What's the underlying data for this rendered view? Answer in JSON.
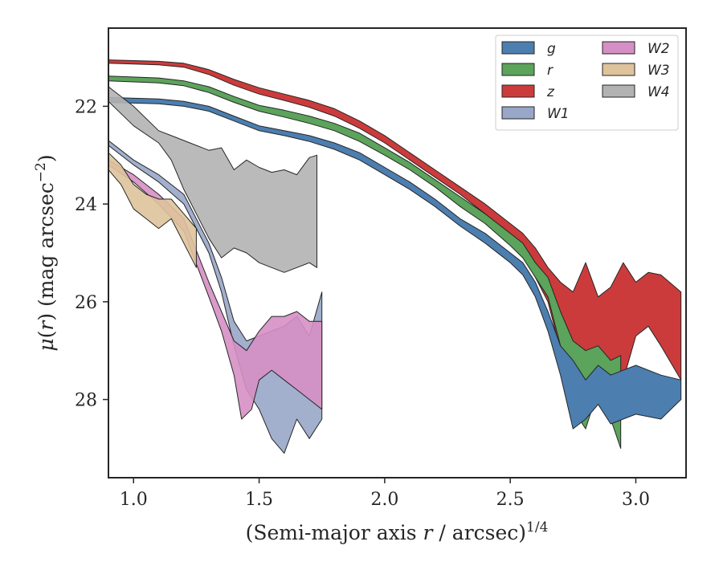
{
  "chart_data": {
    "type": "area",
    "xlabel": "(Semi-major axis r / arcsec)^1/4",
    "ylabel": "μ(r) (mag arcsec−2)",
    "xlim": [
      0.9,
      3.2
    ],
    "ylim": [
      29.6,
      20.4
    ],
    "y_inverted": true,
    "xticks": [
      1.0,
      1.5,
      2.0,
      2.5,
      3.0
    ],
    "xtick_labels": [
      "1.0",
      "1.5",
      "2.0",
      "2.5",
      "3.0"
    ],
    "yticks": [
      22,
      24,
      26,
      28
    ],
    "ytick_labels": [
      "22",
      "24",
      "26",
      "28"
    ],
    "grid": false,
    "legend_position": "top-right",
    "legend_columns": 2,
    "series": [
      {
        "name": "g",
        "color": "#4c7eb0",
        "upper": [
          [
            0.9,
            21.82
          ],
          [
            1.1,
            21.85
          ],
          [
            1.2,
            21.9
          ],
          [
            1.3,
            22.0
          ],
          [
            1.4,
            22.2
          ],
          [
            1.5,
            22.4
          ],
          [
            1.6,
            22.5
          ],
          [
            1.7,
            22.6
          ],
          [
            1.8,
            22.75
          ],
          [
            1.9,
            22.95
          ],
          [
            2.0,
            23.25
          ],
          [
            2.1,
            23.55
          ],
          [
            2.2,
            23.9
          ],
          [
            2.3,
            24.3
          ],
          [
            2.4,
            24.6
          ],
          [
            2.5,
            25.0
          ],
          [
            2.55,
            25.2
          ],
          [
            2.6,
            25.6
          ],
          [
            2.65,
            26.2
          ],
          [
            2.7,
            26.9
          ],
          [
            2.75,
            27.2
          ],
          [
            2.8,
            27.6
          ],
          [
            2.85,
            27.3
          ],
          [
            2.9,
            27.5
          ],
          [
            3.0,
            27.3
          ],
          [
            3.1,
            27.5
          ],
          [
            3.18,
            27.6
          ]
        ],
        "lower": [
          [
            0.9,
            21.92
          ],
          [
            1.1,
            21.95
          ],
          [
            1.2,
            22.0
          ],
          [
            1.3,
            22.1
          ],
          [
            1.4,
            22.3
          ],
          [
            1.5,
            22.5
          ],
          [
            1.6,
            22.6
          ],
          [
            1.7,
            22.72
          ],
          [
            1.8,
            22.88
          ],
          [
            1.9,
            23.1
          ],
          [
            2.0,
            23.4
          ],
          [
            2.1,
            23.7
          ],
          [
            2.2,
            24.05
          ],
          [
            2.3,
            24.45
          ],
          [
            2.4,
            24.8
          ],
          [
            2.5,
            25.2
          ],
          [
            2.55,
            25.45
          ],
          [
            2.6,
            25.9
          ],
          [
            2.65,
            26.6
          ],
          [
            2.7,
            27.5
          ],
          [
            2.75,
            28.6
          ],
          [
            2.8,
            28.4
          ],
          [
            2.85,
            28.1
          ],
          [
            2.9,
            28.5
          ],
          [
            3.0,
            28.3
          ],
          [
            3.1,
            28.4
          ],
          [
            3.18,
            28.0
          ]
        ]
      },
      {
        "name": "r",
        "color": "#5ca35c",
        "upper": [
          [
            0.9,
            21.38
          ],
          [
            1.1,
            21.42
          ],
          [
            1.2,
            21.48
          ],
          [
            1.3,
            21.6
          ],
          [
            1.4,
            21.8
          ],
          [
            1.5,
            21.98
          ],
          [
            1.6,
            22.08
          ],
          [
            1.7,
            22.2
          ],
          [
            1.8,
            22.35
          ],
          [
            1.9,
            22.55
          ],
          [
            2.0,
            22.85
          ],
          [
            2.1,
            23.15
          ],
          [
            2.2,
            23.5
          ],
          [
            2.3,
            23.85
          ],
          [
            2.4,
            24.2
          ],
          [
            2.5,
            24.6
          ],
          [
            2.55,
            24.8
          ],
          [
            2.6,
            25.2
          ],
          [
            2.65,
            25.5
          ],
          [
            2.7,
            26.2
          ],
          [
            2.75,
            26.8
          ],
          [
            2.8,
            27.0
          ],
          [
            2.85,
            26.9
          ],
          [
            2.9,
            27.2
          ],
          [
            2.94,
            27.1
          ]
        ],
        "lower": [
          [
            0.9,
            21.48
          ],
          [
            1.1,
            21.52
          ],
          [
            1.2,
            21.58
          ],
          [
            1.3,
            21.72
          ],
          [
            1.4,
            21.92
          ],
          [
            1.5,
            22.1
          ],
          [
            1.6,
            22.22
          ],
          [
            1.7,
            22.35
          ],
          [
            1.8,
            22.5
          ],
          [
            1.9,
            22.72
          ],
          [
            2.0,
            23.0
          ],
          [
            2.1,
            23.3
          ],
          [
            2.2,
            23.65
          ],
          [
            2.3,
            24.05
          ],
          [
            2.4,
            24.4
          ],
          [
            2.5,
            24.85
          ],
          [
            2.55,
            25.1
          ],
          [
            2.6,
            25.5
          ],
          [
            2.65,
            25.9
          ],
          [
            2.7,
            26.9
          ],
          [
            2.75,
            28.2
          ],
          [
            2.8,
            28.6
          ],
          [
            2.85,
            27.8
          ],
          [
            2.9,
            28.4
          ],
          [
            2.94,
            29.0
          ]
        ]
      },
      {
        "name": "z",
        "color": "#cc3b3b",
        "upper": [
          [
            0.9,
            21.05
          ],
          [
            1.1,
            21.08
          ],
          [
            1.2,
            21.12
          ],
          [
            1.3,
            21.25
          ],
          [
            1.4,
            21.45
          ],
          [
            1.5,
            21.62
          ],
          [
            1.6,
            21.75
          ],
          [
            1.7,
            21.88
          ],
          [
            1.8,
            22.05
          ],
          [
            1.9,
            22.3
          ],
          [
            2.0,
            22.6
          ],
          [
            2.1,
            22.95
          ],
          [
            2.2,
            23.3
          ],
          [
            2.3,
            23.65
          ],
          [
            2.4,
            24.0
          ],
          [
            2.5,
            24.4
          ],
          [
            2.55,
            24.6
          ],
          [
            2.6,
            24.9
          ],
          [
            2.65,
            25.3
          ],
          [
            2.7,
            25.6
          ],
          [
            2.75,
            25.8
          ],
          [
            2.8,
            25.2
          ],
          [
            2.85,
            25.9
          ],
          [
            2.9,
            25.7
          ],
          [
            2.95,
            25.2
          ],
          [
            3.0,
            25.6
          ],
          [
            3.05,
            25.4
          ],
          [
            3.1,
            25.45
          ],
          [
            3.18,
            25.8
          ]
        ],
        "lower": [
          [
            0.9,
            21.12
          ],
          [
            1.1,
            21.15
          ],
          [
            1.2,
            21.2
          ],
          [
            1.3,
            21.35
          ],
          [
            1.4,
            21.57
          ],
          [
            1.5,
            21.75
          ],
          [
            1.6,
            21.88
          ],
          [
            1.7,
            22.02
          ],
          [
            1.8,
            22.2
          ],
          [
            1.9,
            22.45
          ],
          [
            2.0,
            22.75
          ],
          [
            2.1,
            23.1
          ],
          [
            2.2,
            23.45
          ],
          [
            2.3,
            23.8
          ],
          [
            2.4,
            24.2
          ],
          [
            2.5,
            24.65
          ],
          [
            2.55,
            24.9
          ],
          [
            2.6,
            25.5
          ],
          [
            2.65,
            26.0
          ],
          [
            2.7,
            27.0
          ],
          [
            2.75,
            27.6
          ],
          [
            2.8,
            27.3
          ],
          [
            2.85,
            27.5
          ],
          [
            2.9,
            27.8
          ],
          [
            2.95,
            27.6
          ],
          [
            3.0,
            26.7
          ],
          [
            3.05,
            26.5
          ],
          [
            3.1,
            26.9
          ],
          [
            3.18,
            27.6
          ]
        ]
      },
      {
        "name": "W1",
        "color": "#98a6c8",
        "upper": [
          [
            0.9,
            22.7
          ],
          [
            1.0,
            23.1
          ],
          [
            1.1,
            23.4
          ],
          [
            1.2,
            23.8
          ],
          [
            1.3,
            24.8
          ],
          [
            1.35,
            25.5
          ],
          [
            1.4,
            26.4
          ],
          [
            1.45,
            26.8
          ],
          [
            1.5,
            26.7
          ],
          [
            1.55,
            26.6
          ],
          [
            1.6,
            26.5
          ],
          [
            1.65,
            26.3
          ],
          [
            1.7,
            26.7
          ],
          [
            1.75,
            25.8
          ]
        ],
        "lower": [
          [
            0.9,
            22.8
          ],
          [
            1.0,
            23.2
          ],
          [
            1.1,
            23.55
          ],
          [
            1.2,
            24.0
          ],
          [
            1.3,
            25.0
          ],
          [
            1.35,
            25.8
          ],
          [
            1.4,
            26.9
          ],
          [
            1.45,
            27.8
          ],
          [
            1.5,
            28.2
          ],
          [
            1.55,
            28.8
          ],
          [
            1.6,
            29.1
          ],
          [
            1.65,
            28.4
          ],
          [
            1.7,
            28.8
          ],
          [
            1.75,
            28.4
          ]
        ]
      },
      {
        "name": "W2",
        "color": "#d68fc4",
        "upper": [
          [
            0.9,
            23.1
          ],
          [
            1.0,
            23.4
          ],
          [
            1.1,
            23.8
          ],
          [
            1.2,
            24.3
          ],
          [
            1.3,
            25.6
          ],
          [
            1.35,
            26.2
          ],
          [
            1.4,
            26.8
          ],
          [
            1.45,
            27.0
          ],
          [
            1.5,
            26.6
          ],
          [
            1.55,
            26.3
          ],
          [
            1.6,
            26.3
          ],
          [
            1.65,
            26.2
          ],
          [
            1.7,
            26.4
          ],
          [
            1.75,
            26.4
          ]
        ],
        "lower": [
          [
            0.9,
            23.2
          ],
          [
            1.0,
            23.55
          ],
          [
            1.1,
            24.0
          ],
          [
            1.2,
            24.55
          ],
          [
            1.3,
            25.9
          ],
          [
            1.35,
            26.6
          ],
          [
            1.4,
            27.5
          ],
          [
            1.43,
            28.4
          ],
          [
            1.47,
            28.2
          ],
          [
            1.5,
            27.6
          ],
          [
            1.55,
            27.4
          ],
          [
            1.6,
            27.6
          ],
          [
            1.65,
            27.8
          ],
          [
            1.7,
            28.0
          ],
          [
            1.75,
            28.2
          ]
        ]
      },
      {
        "name": "W3",
        "color": "#dfc39c",
        "upper": [
          [
            0.9,
            22.95
          ],
          [
            0.95,
            23.2
          ],
          [
            1.0,
            23.6
          ],
          [
            1.05,
            23.8
          ],
          [
            1.1,
            23.9
          ],
          [
            1.15,
            23.9
          ],
          [
            1.2,
            24.2
          ],
          [
            1.25,
            24.5
          ]
        ],
        "lower": [
          [
            0.9,
            23.3
          ],
          [
            0.95,
            23.6
          ],
          [
            1.0,
            24.1
          ],
          [
            1.05,
            24.3
          ],
          [
            1.1,
            24.5
          ],
          [
            1.15,
            24.3
          ],
          [
            1.2,
            24.8
          ],
          [
            1.25,
            25.3
          ]
        ]
      },
      {
        "name": "W4",
        "color": "#b2b2b2",
        "upper": [
          [
            0.9,
            21.6
          ],
          [
            1.0,
            22.0
          ],
          [
            1.1,
            22.5
          ],
          [
            1.15,
            22.6
          ],
          [
            1.2,
            22.7
          ],
          [
            1.25,
            22.8
          ],
          [
            1.3,
            22.9
          ],
          [
            1.35,
            22.85
          ],
          [
            1.4,
            23.3
          ],
          [
            1.45,
            23.1
          ],
          [
            1.5,
            23.25
          ],
          [
            1.55,
            23.35
          ],
          [
            1.6,
            23.3
          ],
          [
            1.65,
            23.4
          ],
          [
            1.7,
            23.05
          ],
          [
            1.73,
            23.0
          ]
        ],
        "lower": [
          [
            0.9,
            21.9
          ],
          [
            1.0,
            22.4
          ],
          [
            1.1,
            22.75
          ],
          [
            1.15,
            23.1
          ],
          [
            1.2,
            23.7
          ],
          [
            1.25,
            24.2
          ],
          [
            1.3,
            24.7
          ],
          [
            1.35,
            25.1
          ],
          [
            1.4,
            24.9
          ],
          [
            1.45,
            25.0
          ],
          [
            1.5,
            25.2
          ],
          [
            1.55,
            25.3
          ],
          [
            1.6,
            25.4
          ],
          [
            1.65,
            25.3
          ],
          [
            1.7,
            25.2
          ],
          [
            1.73,
            25.3
          ]
        ]
      }
    ]
  }
}
